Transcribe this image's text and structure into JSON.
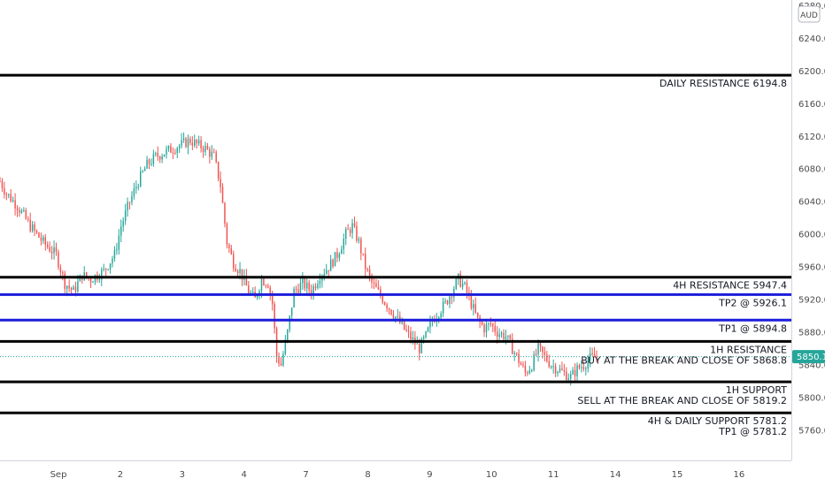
{
  "chart_data": {
    "type": "candlestick",
    "currency": "AUD",
    "last_price": "5850.1",
    "colors": {
      "up": "#26a69a",
      "down": "#ef5350",
      "level_black": "#000000",
      "level_blue": "#1c1cdc",
      "price_tag": "#26a69a"
    },
    "ylim": [
      5723,
      6287
    ],
    "y_ticks": [
      "6280.0",
      "6240.0",
      "6200.0",
      "6160.0",
      "6120.0",
      "6080.0",
      "6040.0",
      "6000.0",
      "5960.0",
      "5920.0",
      "5880.0",
      "5840.0",
      "5800.0",
      "5760.0"
    ],
    "x_ticks": [
      {
        "label": "Sep",
        "idx": 0
      },
      {
        "label": "2",
        "idx": 1
      },
      {
        "label": "3",
        "idx": 2
      },
      {
        "label": "4",
        "idx": 3
      },
      {
        "label": "7",
        "idx": 4
      },
      {
        "label": "8",
        "idx": 5
      },
      {
        "label": "9",
        "idx": 6
      },
      {
        "label": "10",
        "idx": 7
      },
      {
        "label": "11",
        "idx": 8
      },
      {
        "label": "14",
        "idx": 9
      },
      {
        "label": "15",
        "idx": 10
      },
      {
        "label": "16",
        "idx": 11
      }
    ],
    "levels": [
      {
        "price": 6194.8,
        "color": "black",
        "lines": [
          "DAILY RESISTANCE 6194.8"
        ]
      },
      {
        "price": 5947.4,
        "color": "black",
        "lines": [
          "4H RESISTANCE 5947.4"
        ]
      },
      {
        "price": 5926.1,
        "color": "blue",
        "lines": [
          "TP2 @ 5926.1"
        ]
      },
      {
        "price": 5894.8,
        "color": "blue",
        "lines": [
          "TP1 @ 5894.8"
        ]
      },
      {
        "price": 5868.8,
        "color": "black",
        "lines": [
          "1H RESISTANCE",
          "BUY AT THE BREAK AND CLOSE OF 5868.8"
        ]
      },
      {
        "price": 5819.2,
        "color": "black",
        "lines": [
          "1H SUPPORT",
          "SELL AT THE BREAK AND CLOSE OF 5819.2"
        ]
      },
      {
        "price": 5781.2,
        "color": "black",
        "lines": [
          "4H & DAILY SUPPORT 5781.2",
          "TP1 @ 5781.2"
        ]
      }
    ],
    "path": [
      [
        0,
        6065
      ],
      [
        3,
        6050
      ],
      [
        8,
        6035
      ],
      [
        14,
        6010
      ],
      [
        20,
        5990
      ],
      [
        26,
        5975
      ],
      [
        30,
        5940
      ],
      [
        34,
        5930
      ],
      [
        38,
        5950
      ],
      [
        42,
        5945
      ],
      [
        48,
        5955
      ],
      [
        53,
        5975
      ],
      [
        56,
        6010
      ],
      [
        60,
        6040
      ],
      [
        64,
        6065
      ],
      [
        68,
        6085
      ],
      [
        72,
        6095
      ],
      [
        76,
        6100
      ],
      [
        80,
        6105
      ],
      [
        84,
        6110
      ],
      [
        88,
        6115
      ],
      [
        91,
        6110
      ],
      [
        95,
        6105
      ],
      [
        99,
        6095
      ],
      [
        102,
        6060
      ],
      [
        105,
        5990
      ],
      [
        108,
        5965
      ],
      [
        111,
        5955
      ],
      [
        115,
        5930
      ],
      [
        118,
        5920
      ],
      [
        121,
        5945
      ],
      [
        124,
        5940
      ],
      [
        126,
        5915
      ],
      [
        128,
        5850
      ],
      [
        130,
        5840
      ],
      [
        133,
        5880
      ],
      [
        136,
        5930
      ],
      [
        140,
        5940
      ],
      [
        144,
        5930
      ],
      [
        148,
        5950
      ],
      [
        152,
        5960
      ],
      [
        156,
        5975
      ],
      [
        160,
        6000
      ],
      [
        163,
        6010
      ],
      [
        166,
        5990
      ],
      [
        169,
        5960
      ],
      [
        172,
        5940
      ],
      [
        176,
        5925
      ],
      [
        180,
        5910
      ],
      [
        184,
        5895
      ],
      [
        188,
        5880
      ],
      [
        191,
        5870
      ],
      [
        194,
        5860
      ],
      [
        197,
        5875
      ],
      [
        200,
        5895
      ],
      [
        203,
        5905
      ],
      [
        206,
        5915
      ],
      [
        209,
        5930
      ],
      [
        212,
        5945
      ],
      [
        215,
        5935
      ],
      [
        218,
        5915
      ],
      [
        221,
        5895
      ],
      [
        224,
        5885
      ],
      [
        227,
        5890
      ],
      [
        230,
        5880
      ],
      [
        234,
        5875
      ],
      [
        237,
        5860
      ],
      [
        240,
        5845
      ],
      [
        243,
        5830
      ],
      [
        246,
        5840
      ],
      [
        249,
        5860
      ],
      [
        252,
        5850
      ],
      [
        255,
        5840
      ],
      [
        258,
        5835
      ],
      [
        261,
        5830
      ],
      [
        264,
        5825
      ],
      [
        267,
        5835
      ],
      [
        270,
        5840
      ],
      [
        273,
        5848
      ],
      [
        276,
        5850
      ]
    ],
    "n_candles": 277,
    "date_span": 12.3
  }
}
